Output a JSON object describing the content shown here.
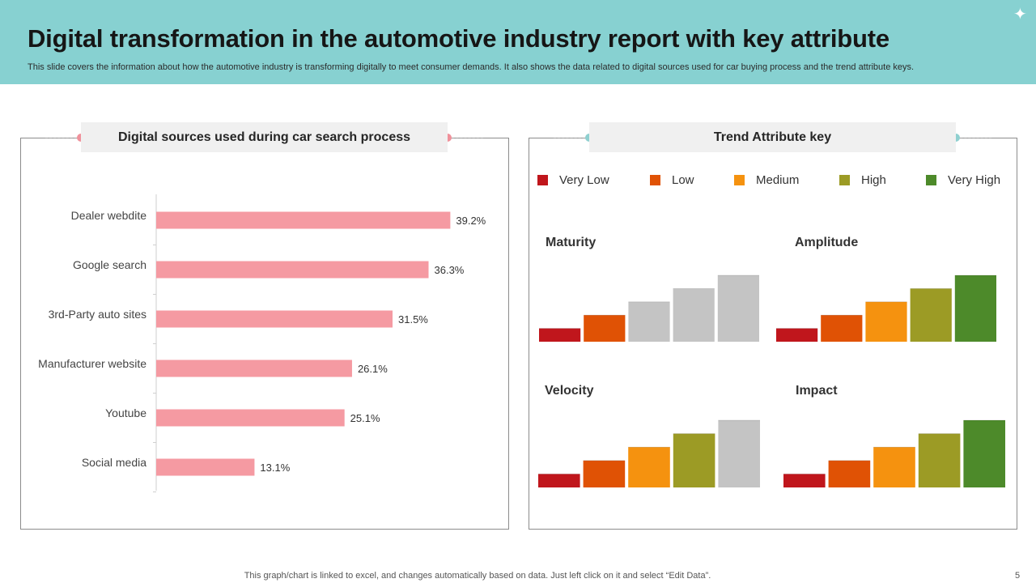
{
  "slide": {
    "title": "Digital transformation in the automotive industry report with key attribute",
    "subtitle": "This slide covers the information about how the automotive industry is transforming digitally  to meet consumer demands. It also shows the data related to digital sources used for car buying process and the trend attribute keys.",
    "footer_note": "This graph/chart is linked to excel,  and changes automatically based on data. Just left click on it and select “Edit Data”.",
    "page_number": "5"
  },
  "left_panel": {
    "heading": "Digital sources  used during car search process"
  },
  "right_panel": {
    "heading": "Trend Attribute key"
  },
  "colors": {
    "header_bg": "#87d1d1",
    "bar_pink": "#f59aa2",
    "dot_pink": "#f0919b",
    "dot_teal": "#8fd0d0",
    "very_low": "#c0161c",
    "low": "#e05205",
    "medium": "#f5920f",
    "high": "#9c9b25",
    "very_high": "#4d8a2a",
    "grey": "#c4c4c4"
  },
  "legend": [
    {
      "label": "Very Low",
      "key": "very_low"
    },
    {
      "label": "Low",
      "key": "low"
    },
    {
      "label": "Medium",
      "key": "medium"
    },
    {
      "label": "High",
      "key": "high"
    },
    {
      "label": "Very High",
      "key": "very_high"
    }
  ],
  "chart_data": [
    {
      "type": "bar",
      "orientation": "horizontal",
      "title": "Digital sources  used during car search process",
      "categories": [
        "Dealer webdite",
        "Google search",
        "3rd-Party auto sites",
        "Manufacturer website",
        "Youtube",
        "Social media"
      ],
      "values": [
        39.2,
        36.3,
        31.5,
        26.1,
        25.1,
        13.1
      ],
      "value_labels": [
        "39.2%",
        "36.3%",
        "31.5%",
        "26.1%",
        "25.1%",
        "13.1%"
      ],
      "xlim": [
        0,
        40
      ],
      "xlabel": "",
      "ylabel": "",
      "grid": false
    },
    {
      "type": "bar",
      "title": "Maturity",
      "levels": [
        1,
        2,
        3,
        4,
        5
      ],
      "colors": [
        "very_low",
        "low",
        "grey",
        "grey",
        "grey"
      ]
    },
    {
      "type": "bar",
      "title": "Amplitude",
      "levels": [
        1,
        2,
        3,
        4,
        5
      ],
      "colors": [
        "very_low",
        "low",
        "medium",
        "high",
        "very_high"
      ]
    },
    {
      "type": "bar",
      "title": "Velocity",
      "levels": [
        1,
        2,
        3,
        4,
        5
      ],
      "colors": [
        "very_low",
        "low",
        "medium",
        "high",
        "grey"
      ]
    },
    {
      "type": "bar",
      "title": "Impact",
      "levels": [
        1,
        2,
        3,
        4,
        5
      ],
      "colors": [
        "very_low",
        "low",
        "medium",
        "high",
        "very_high"
      ]
    }
  ]
}
